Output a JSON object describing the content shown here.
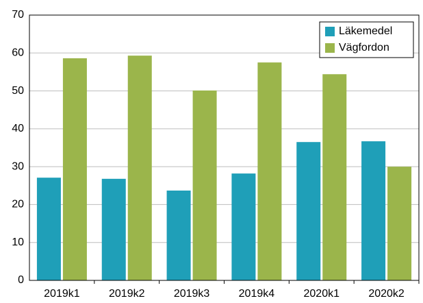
{
  "chart_data": {
    "type": "bar",
    "categories": [
      "2019k1",
      "2019k2",
      "2019k3",
      "2019k4",
      "2020k1",
      "2020k2"
    ],
    "series": [
      {
        "name": "Läkemedel",
        "color": "#1f9fb8",
        "values": [
          27.1,
          26.8,
          23.7,
          28.2,
          36.5,
          36.7
        ]
      },
      {
        "name": "Vägfordon",
        "color": "#9bb54b",
        "values": [
          58.6,
          59.3,
          50.1,
          57.5,
          54.4,
          30.0
        ]
      }
    ],
    "ylim": [
      0,
      70
    ],
    "yticks": [
      0,
      10,
      20,
      30,
      40,
      50,
      60,
      70
    ],
    "grid": true,
    "legend": "upper right"
  }
}
